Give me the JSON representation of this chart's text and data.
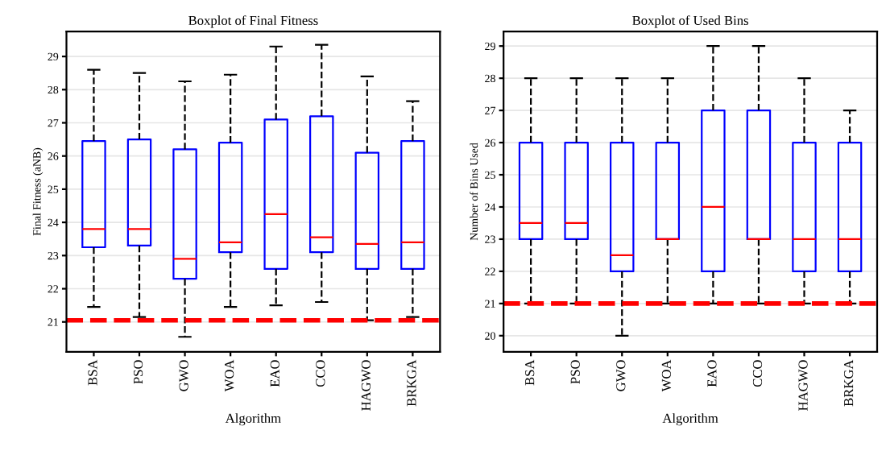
{
  "chart_data": [
    {
      "type": "box",
      "title": "Boxplot of Final Fitness",
      "xlabel": "Algorithm",
      "ylabel": "Final Fitness (aNB)",
      "categories": [
        "BSA",
        "PSO",
        "GWO",
        "WOA",
        "EAO",
        "CCO",
        "HAGWO",
        "BRKGA"
      ],
      "boxes": [
        {
          "low": 21.45,
          "q1": 23.25,
          "median": 23.8,
          "q3": 26.45,
          "high": 28.6
        },
        {
          "low": 21.15,
          "q1": 23.3,
          "median": 23.8,
          "q3": 26.5,
          "high": 28.5
        },
        {
          "low": 20.55,
          "q1": 22.3,
          "median": 22.9,
          "q3": 26.2,
          "high": 28.25
        },
        {
          "low": 21.45,
          "q1": 23.1,
          "median": 23.4,
          "q3": 26.4,
          "high": 28.45
        },
        {
          "low": 21.5,
          "q1": 22.6,
          "median": 24.25,
          "q3": 27.1,
          "high": 29.3
        },
        {
          "low": 21.6,
          "q1": 23.1,
          "median": 23.55,
          "q3": 27.2,
          "high": 29.35
        },
        {
          "low": 21.05,
          "q1": 22.6,
          "median": 23.35,
          "q3": 26.1,
          "high": 28.4
        },
        {
          "low": 21.15,
          "q1": 22.6,
          "median": 23.4,
          "q3": 26.45,
          "high": 27.65
        }
      ],
      "color": "#0000ff",
      "ylim": [
        20.1,
        29.75
      ],
      "yticks": [
        21,
        22,
        23,
        24,
        25,
        26,
        27,
        28,
        29
      ],
      "grid": "y",
      "ref_lines": [
        {
          "axis": "y",
          "value": 21.05,
          "color": "#ff0000",
          "line_style": "dashed"
        }
      ]
    },
    {
      "type": "box",
      "title": "Boxplot of Used Bins",
      "xlabel": "Algorithm",
      "ylabel": "Number of Bins Used",
      "categories": [
        "BSA",
        "PSO",
        "GWO",
        "WOA",
        "EAO",
        "CCO",
        "HAGWO",
        "BRKGA"
      ],
      "boxes": [
        {
          "low": 21,
          "q1": 23,
          "median": 23.5,
          "q3": 26,
          "high": 28
        },
        {
          "low": 21,
          "q1": 23,
          "median": 23.5,
          "q3": 26,
          "high": 28
        },
        {
          "low": 20,
          "q1": 22,
          "median": 22.5,
          "q3": 26,
          "high": 28
        },
        {
          "low": 21,
          "q1": 23,
          "median": 23,
          "q3": 26,
          "high": 28
        },
        {
          "low": 21,
          "q1": 22,
          "median": 24,
          "q3": 27,
          "high": 29
        },
        {
          "low": 21,
          "q1": 23,
          "median": 23,
          "q3": 27,
          "high": 29
        },
        {
          "low": 21,
          "q1": 22,
          "median": 23,
          "q3": 26,
          "high": 28
        },
        {
          "low": 21,
          "q1": 22,
          "median": 23,
          "q3": 26,
          "high": 27
        }
      ],
      "color": "#0000ff",
      "ylim": [
        19.5,
        29.45
      ],
      "yticks": [
        20,
        21,
        22,
        23,
        24,
        25,
        26,
        27,
        28,
        29
      ],
      "grid": "y",
      "ref_lines": [
        {
          "axis": "y",
          "value": 21,
          "color": "#ff0000",
          "line_style": "dashed"
        }
      ]
    }
  ]
}
